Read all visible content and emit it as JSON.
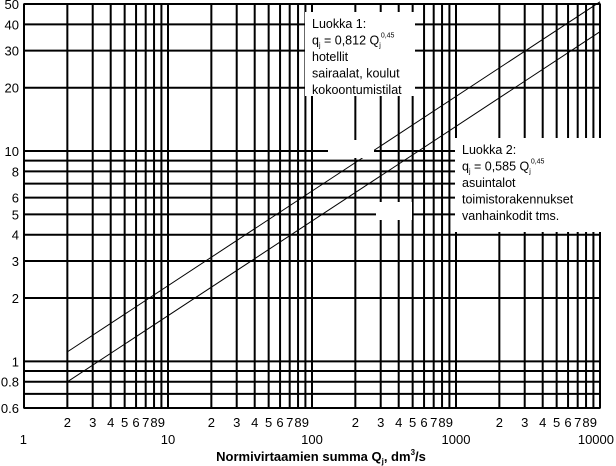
{
  "chart_data": {
    "type": "line",
    "xscale": "log",
    "yscale": "log",
    "xlim": [
      1,
      10000
    ],
    "ylim": [
      0.6,
      50
    ],
    "grid": true,
    "xlabel": {
      "main": "Normivirtaamien summa Q",
      "sub": "j",
      "unit_pre": ", dm",
      "unit_sup": "3",
      "unit_post": "/s"
    },
    "x_ticks_major": [
      {
        "value": 1,
        "label": "1"
      },
      {
        "value": 10,
        "label": "10"
      },
      {
        "value": 100,
        "label": "100"
      },
      {
        "value": 1000,
        "label": "1000"
      },
      {
        "value": 10000,
        "label": "10000"
      }
    ],
    "x_ticks_minor": [
      {
        "value": 2,
        "label": "2"
      },
      {
        "value": 3,
        "label": "3"
      },
      {
        "value": 4,
        "label": "4"
      },
      {
        "value": 5,
        "label": "5"
      },
      {
        "value": 6,
        "label": "6"
      },
      {
        "value": 7,
        "label": "7"
      },
      {
        "value": 8,
        "label": "8"
      },
      {
        "value": 9,
        "label": "9"
      },
      {
        "value": 20,
        "label": "2"
      },
      {
        "value": 30,
        "label": "3"
      },
      {
        "value": 40,
        "label": "4"
      },
      {
        "value": 50,
        "label": "5"
      },
      {
        "value": 60,
        "label": "6"
      },
      {
        "value": 70,
        "label": "7"
      },
      {
        "value": 80,
        "label": "8"
      },
      {
        "value": 90,
        "label": "9"
      },
      {
        "value": 200,
        "label": "2"
      },
      {
        "value": 300,
        "label": "3"
      },
      {
        "value": 400,
        "label": "4"
      },
      {
        "value": 500,
        "label": "5"
      },
      {
        "value": 600,
        "label": "6"
      },
      {
        "value": 700,
        "label": "7"
      },
      {
        "value": 800,
        "label": "8"
      },
      {
        "value": 900,
        "label": "9"
      },
      {
        "value": 2000,
        "label": "2"
      },
      {
        "value": 3000,
        "label": "3"
      },
      {
        "value": 4000,
        "label": "4"
      },
      {
        "value": 5000,
        "label": "5"
      },
      {
        "value": 6000,
        "label": "6"
      },
      {
        "value": 7000,
        "label": "7"
      },
      {
        "value": 8000,
        "label": "8"
      },
      {
        "value": 9000,
        "label": "9"
      }
    ],
    "y_ticks": [
      {
        "value": 0.6,
        "label": "0.6"
      },
      {
        "value": 0.8,
        "label": "0.8"
      },
      {
        "value": 1,
        "label": "1"
      },
      {
        "value": 2,
        "label": "2"
      },
      {
        "value": 3,
        "label": "3"
      },
      {
        "value": 4,
        "label": "4"
      },
      {
        "value": 5,
        "label": "5"
      },
      {
        "value": 6,
        "label": "6"
      },
      {
        "value": 8,
        "label": "8"
      },
      {
        "value": 10,
        "label": "10"
      },
      {
        "value": 20,
        "label": "20"
      },
      {
        "value": 30,
        "label": "30"
      },
      {
        "value": 40,
        "label": "40"
      },
      {
        "value": 50,
        "label": "50"
      }
    ],
    "y_grid_extra": [
      0.7,
      0.9,
      7,
      9
    ],
    "series": [
      {
        "coef": 0.812,
        "exp": 0.45,
        "x_range": [
          2,
          10000
        ]
      },
      {
        "coef": 0.585,
        "exp": 0.45,
        "x_range": [
          2,
          10000
        ]
      }
    ],
    "annotations": [
      {
        "lines": [
          {
            "text": "Luokka 1:"
          },
          {
            "formula": {
              "lhs": "q",
              "lhs_sub": "j",
              "mid": " = 0,812 Q",
              "mid_sub": "j",
              "sup": "0,45"
            }
          },
          {
            "text": "hotellit"
          },
          {
            "text": "sairaalat, koulut"
          },
          {
            "text": "kokoontumistilat"
          }
        ]
      },
      {
        "lines": [
          {
            "text": "Luokka 2:"
          },
          {
            "formula": {
              "lhs": "q",
              "lhs_sub": "j",
              "mid": " = 0,585 Q",
              "mid_sub": "j",
              "sup": "0,45"
            }
          },
          {
            "text": "asuintalot"
          },
          {
            "text": "toimistorakennukset"
          },
          {
            "text": "vanhainkodit tms."
          }
        ]
      }
    ]
  }
}
